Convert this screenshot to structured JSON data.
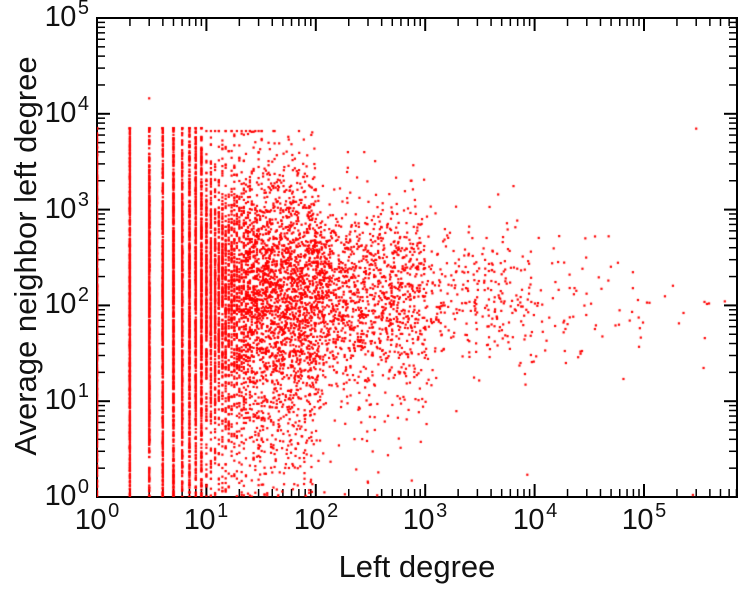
{
  "chart_data": {
    "type": "scatter",
    "title": "",
    "xlabel": "Left degree",
    "ylabel": "Average neighbor left degree",
    "x_scale": "log",
    "y_scale": "log",
    "xlim_log10": [
      0,
      5.85
    ],
    "ylim_log10": [
      0,
      5
    ],
    "grid": false,
    "legend": "none",
    "axis_color": "#000000",
    "marker_color": "#ff0000",
    "marker_size": 2.2,
    "x_ticks": [
      {
        "base": "10",
        "exp": "0"
      },
      {
        "base": "10",
        "exp": "1"
      },
      {
        "base": "10",
        "exp": "2"
      },
      {
        "base": "10",
        "exp": "3"
      },
      {
        "base": "10",
        "exp": "4"
      },
      {
        "base": "10",
        "exp": "5"
      }
    ],
    "y_ticks": [
      {
        "base": "10",
        "exp": "0"
      },
      {
        "base": "10",
        "exp": "1"
      },
      {
        "base": "10",
        "exp": "2"
      },
      {
        "base": "10",
        "exp": "3"
      },
      {
        "base": "10",
        "exp": "4"
      },
      {
        "base": "10",
        "exp": "5"
      }
    ],
    "seed": 1337,
    "band_defaults": {
      "y_log_mean": 2.05,
      "y_log_sd": 0.9,
      "y_log_min": 0,
      "y_log_max": 3.85,
      "uniform_frac": 0.45
    },
    "integer_bands": [
      {
        "x": 1,
        "count": 720
      },
      {
        "x": 2,
        "count": 660
      },
      {
        "x": 3,
        "count": 620
      },
      {
        "x": 4,
        "count": 560
      },
      {
        "x": 5,
        "count": 520
      },
      {
        "x": 6,
        "count": 480
      },
      {
        "x": 7,
        "count": 450
      },
      {
        "x": 8,
        "count": 430
      },
      {
        "x": 9,
        "count": 410
      }
    ],
    "cloud_decades": [
      {
        "x_log_min": 1.0,
        "x_log_max": 2.0,
        "count": 4200,
        "x_skew": 1.35,
        "snap_below": 45,
        "y_log_mean": 2.08,
        "y_log_sd": 0.7,
        "y_log_min": 0,
        "y_log_max": 3.82,
        "low_tail_frac": 0.06
      },
      {
        "x_log_min": 2.0,
        "x_log_max": 3.0,
        "count": 1350,
        "x_skew": 1.3,
        "snap_below": 0,
        "y_log_mean": 2.1,
        "y_log_sd": 0.5,
        "y_log_min": 0,
        "y_log_max": 3.6,
        "low_tail_frac": 0.025
      },
      {
        "x_log_min": 3.0,
        "x_log_max": 4.0,
        "count": 300,
        "x_skew": 1.2,
        "snap_below": 0,
        "y_log_mean": 2.08,
        "y_log_sd": 0.42,
        "y_log_min": 0.3,
        "y_log_max": 3.3,
        "low_tail_frac": 0.01
      },
      {
        "x_log_min": 4.0,
        "x_log_max": 5.0,
        "count": 70,
        "x_skew": 1.15,
        "snap_below": 0,
        "y_log_mean": 2.0,
        "y_log_sd": 0.38,
        "y_log_min": 0.5,
        "y_log_max": 2.95,
        "low_tail_frac": 0
      },
      {
        "x_log_min": 5.0,
        "x_log_max": 5.8,
        "count": 12,
        "x_skew": 1.1,
        "snap_below": 0,
        "y_log_mean": 2.0,
        "y_log_sd": 0.33,
        "y_log_min": 0.8,
        "y_log_max": 2.6,
        "low_tail_frac": 0
      }
    ],
    "outliers": [
      [
        3,
        14500
      ],
      [
        300000,
        7000
      ],
      [
        280000,
        1.05
      ]
    ]
  }
}
